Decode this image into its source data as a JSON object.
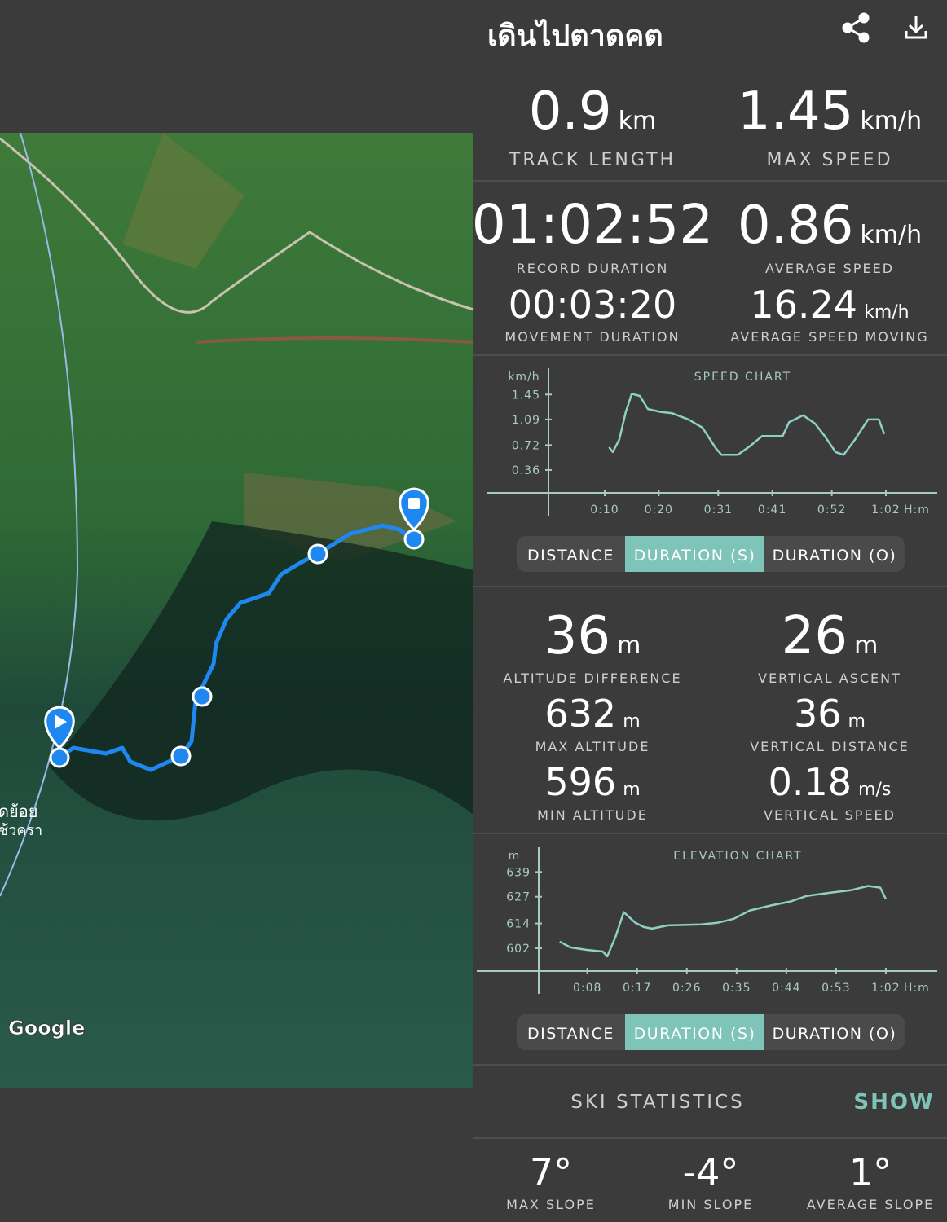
{
  "header": {
    "title": "เดินไปตาดคต"
  },
  "map": {
    "attribution": "Google",
    "place_label_1": "ดย้อย",
    "place_label_2": "ช้วครา"
  },
  "summary": [
    {
      "value": "0.9",
      "unit": "km",
      "label": "TRACK LENGTH"
    },
    {
      "value": "1.45",
      "unit": "km/h",
      "label": "MAX SPEED"
    }
  ],
  "durations": [
    {
      "value": "01:02:52",
      "label": "RECORD DURATION"
    },
    {
      "value": "0.86",
      "unit": "km/h",
      "label": "AVERAGE SPEED"
    },
    {
      "value": "00:03:20",
      "label": "MOVEMENT DURATION"
    },
    {
      "value": "16.24",
      "unit": "km/h",
      "label": "AVERAGE SPEED MOVING"
    }
  ],
  "speed_chart": {
    "type": "line",
    "title": "SPEED CHART",
    "y_unit": "km/h",
    "x_unit": "H:m",
    "color": "#8fd0c4",
    "x": [
      10.8,
      11.5,
      12.7,
      13.9,
      15.0,
      16.5,
      18.0,
      20.3,
      22.5,
      25.5,
      28.1,
      30.5,
      31.6,
      34.6,
      36.8,
      39.1,
      42.9,
      44.1,
      46.7,
      48.9,
      50.7,
      52.7,
      54.2,
      56.2,
      58.7,
      60.7,
      61.7
    ],
    "values": [
      0.69,
      0.62,
      0.8,
      1.2,
      1.46,
      1.43,
      1.24,
      1.2,
      1.18,
      1.09,
      0.97,
      0.68,
      0.58,
      0.58,
      0.7,
      0.85,
      0.85,
      1.05,
      1.15,
      1.03,
      0.85,
      0.62,
      0.58,
      0.79,
      1.09,
      1.09,
      0.88
    ],
    "xlim": [
      -0.4,
      71.5
    ],
    "ylim": [
      0.03,
      1.83
    ],
    "xticks": [
      {
        "value": 10,
        "label": "0:10"
      },
      {
        "value": 20,
        "label": "0:20"
      },
      {
        "value": 31,
        "label": "0:31"
      },
      {
        "value": 41,
        "label": "0:41"
      },
      {
        "value": 52,
        "label": "0:52"
      },
      {
        "value": 62,
        "label": "1:02"
      }
    ],
    "yticks": [
      1.45,
      1.09,
      0.72,
      0.36
    ],
    "toggle": {
      "options": [
        "DISTANCE",
        "DURATION (S)",
        "DURATION (O)"
      ],
      "selected": 1
    }
  },
  "altitude": [
    {
      "value": "36",
      "unit": "m",
      "label": "ALTITUDE DIFFERENCE"
    },
    {
      "value": "26",
      "unit": "m",
      "label": "VERTICAL ASCENT"
    },
    {
      "value": "632",
      "unit": "m",
      "label": "MAX ALTITUDE"
    },
    {
      "value": "36",
      "unit": "m",
      "label": "VERTICAL DISTANCE"
    },
    {
      "value": "596",
      "unit": "m",
      "label": "MIN ALTITUDE"
    },
    {
      "value": "0.18",
      "unit": "m/s",
      "label": "VERTICAL SPEED"
    }
  ],
  "elevation_chart": {
    "type": "line",
    "title": "ELEVATION CHART",
    "y_unit": "m",
    "x_unit": "H:m",
    "color": "#8fd0c4",
    "x": [
      3.0,
      4.9,
      7.9,
      10.8,
      11.6,
      13.1,
      14.6,
      16.7,
      18.2,
      19.7,
      22.6,
      28.6,
      31.5,
      34.5,
      37.4,
      41.1,
      44.8,
      47.7,
      52.1,
      55.8,
      58.8,
      61.0,
      62.0
    ],
    "values": [
      605.2,
      602.4,
      601.2,
      600.4,
      598,
      607.6,
      619.5,
      614.3,
      612.3,
      611.5,
      613.1,
      613.5,
      614.3,
      616.3,
      620.3,
      622.7,
      624.7,
      627.4,
      629,
      630.2,
      632.2,
      631.4,
      625.9
    ],
    "xlim": [
      -0.8,
      71.3
    ],
    "ylim": [
      590.9,
      651
    ],
    "xticks": [
      {
        "value": 8,
        "label": "0:08"
      },
      {
        "value": 17,
        "label": "0:17"
      },
      {
        "value": 26,
        "label": "0:26"
      },
      {
        "value": 35,
        "label": "0:35"
      },
      {
        "value": 44,
        "label": "0:44"
      },
      {
        "value": 53,
        "label": "0:53"
      },
      {
        "value": 62,
        "label": "1:02"
      }
    ],
    "yticks": [
      639,
      627,
      614,
      602
    ],
    "toggle": {
      "options": [
        "DISTANCE",
        "DURATION (S)",
        "DURATION (O)"
      ],
      "selected": 1
    }
  },
  "ski": {
    "title": "SKI STATISTICS",
    "action": "SHOW"
  },
  "slopes": [
    {
      "value": "7°",
      "label": "MAX SLOPE"
    },
    {
      "value": "-4°",
      "label": "MIN SLOPE"
    },
    {
      "value": "1°",
      "label": "AVERAGE SLOPE"
    }
  ]
}
